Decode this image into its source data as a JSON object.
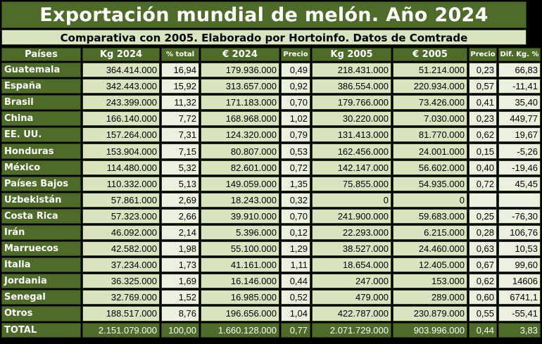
{
  "title": "Exportación mundial de melón. Año 2024",
  "subtitle": "Comparativa con 2005. Elaborado por Hortoinfo. Datos de Comtrade",
  "headers": [
    "Países",
    "Kg 2024",
    "% total",
    "€ 2024",
    "Precio",
    "Kg 2005",
    "€ 2005",
    "Precio",
    "Dif. Kg. %"
  ],
  "rows": [
    [
      "Guatemala",
      "364.414.000",
      "16,94",
      "179.936.000",
      "0,49",
      "218.431.000",
      "51.214.000",
      "0,23",
      "66,83"
    ],
    [
      "España",
      "342.443.000",
      "15,92",
      "313.657.000",
      "0,92",
      "386.554.000",
      "220.934.000",
      "0,57",
      "-11,41"
    ],
    [
      "Brasil",
      "243.399.000",
      "11,32",
      "171.183.000",
      "0,70",
      "179.766.000",
      "73.426.000",
      "0,41",
      "35,40"
    ],
    [
      "China",
      "166.140.000",
      "7,72",
      "168.968.000",
      "1,02",
      "30.220.000",
      "7.030.000",
      "0,23",
      "449,77"
    ],
    [
      "EE. UU.",
      "157.264.000",
      "7,31",
      "124.320.000",
      "0,79",
      "131.413.000",
      "81.770.000",
      "0,62",
      "19,67"
    ],
    [
      "Honduras",
      "153.904.000",
      "7,15",
      "80.807.000",
      "0,53",
      "162.456.000",
      "24.001.000",
      "0,15",
      "-5,26"
    ],
    [
      "México",
      "114.480.000",
      "5,32",
      "82.601.000",
      "0,72",
      "142.147.000",
      "56.602.000",
      "0,40",
      "-19,46"
    ],
    [
      "Países Bajos",
      "110.332.000",
      "5,13",
      "149.059.000",
      "1,35",
      "75.855.000",
      "54.935.000",
      "0,72",
      "45,45"
    ],
    [
      "Uzbekistán",
      "57.861.000",
      "2,69",
      "18.243.000",
      "0,32",
      "0",
      "0",
      "",
      ""
    ],
    [
      "Costa Rica",
      "57.323.000",
      "2,66",
      "39.910.000",
      "0,70",
      "241.900.000",
      "59.683.000",
      "0,25",
      "-76,30"
    ],
    [
      "Irán",
      "46.092.000",
      "2,14",
      "5.396.000",
      "0,12",
      "22.293.000",
      "6.215.000",
      "0,28",
      "106,76"
    ],
    [
      "Marruecos",
      "42.582.000",
      "1,98",
      "55.100.000",
      "1,29",
      "38.527.000",
      "24.460.000",
      "0,63",
      "10,53"
    ],
    [
      "Italia",
      "37.234.000",
      "1,73",
      "41.161.000",
      "1,11",
      "18.654.000",
      "12.405.000",
      "0,67",
      "99,60"
    ],
    [
      "Jordania",
      "36.325.000",
      "1,69",
      "16.146.000",
      "0,44",
      "247.000",
      "153.000",
      "0,62",
      "14606"
    ],
    [
      "Senegal",
      "32.769.000",
      "1,52",
      "16.985.000",
      "0,52",
      "479.000",
      "289.000",
      "0,60",
      "6741,1"
    ],
    [
      "Otros",
      "188.517.000",
      "8,76",
      "196.656.000",
      "1,04",
      "422.787.000",
      "230.879.000",
      "0,55",
      "-55,41"
    ]
  ],
  "total": [
    "TOTAL",
    "2.151.079.000",
    "100,00",
    "1.660.128.000",
    "0,77",
    "2.071.729.000",
    "903.996.000",
    "0,44",
    "3,83"
  ],
  "colors": {
    "header_green": "#4e6b2a",
    "cell_light": "#ebf1de",
    "cell_mid": "#d8e4bf"
  }
}
